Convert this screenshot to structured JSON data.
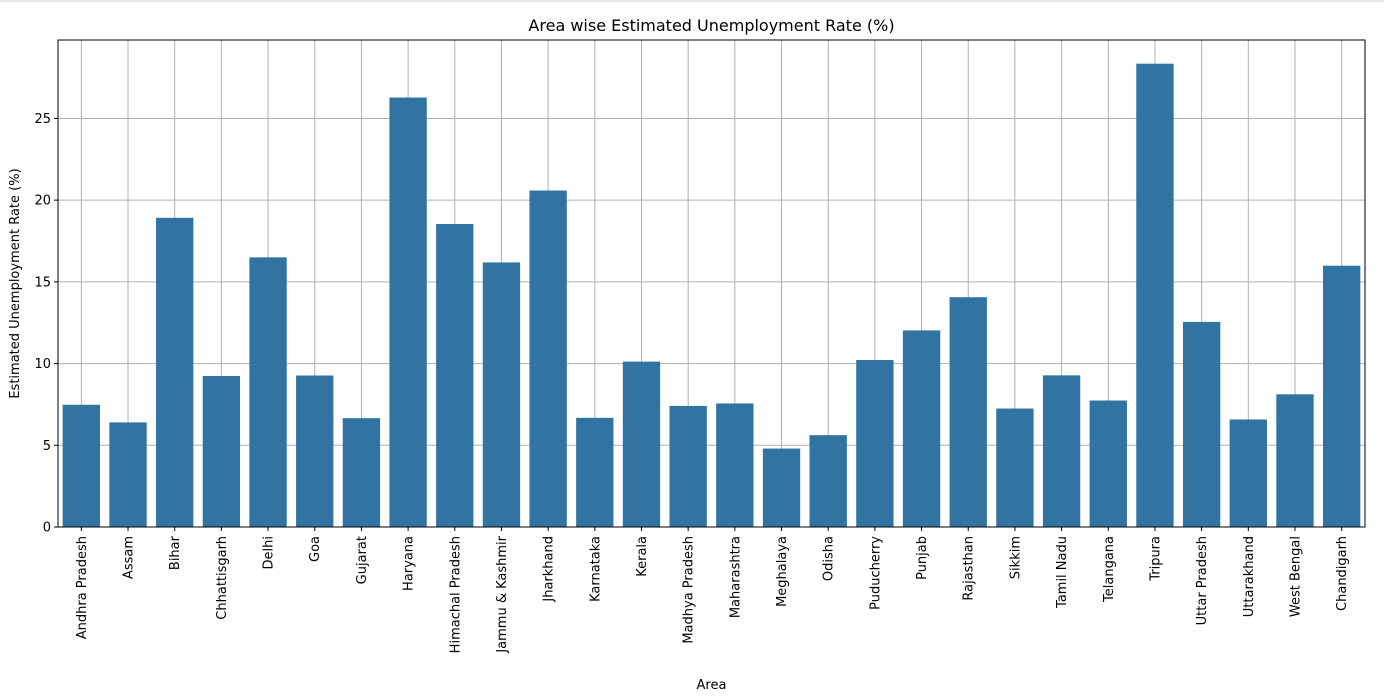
{
  "chart_data": {
    "type": "bar",
    "title": "Area wise Estimated Unemployment Rate (%)",
    "xlabel": "Area",
    "ylabel": "Estimated Unemployment Rate (%)",
    "ylim": [
      0,
      29.8
    ],
    "yticks": [
      0,
      5,
      10,
      15,
      20,
      25
    ],
    "grid": true,
    "bar_color": "#3274a1",
    "categories": [
      "Andhra Pradesh",
      "Assam",
      "Bihar",
      "Chhattisgarh",
      "Delhi",
      "Goa",
      "Gujarat",
      "Haryana",
      "Himachal Pradesh",
      "Jammu & Kashmir",
      "Jharkhand",
      "Karnataka",
      "Kerala",
      "Madhya Pradesh",
      "Maharashtra",
      "Meghalaya",
      "Odisha",
      "Puducherry",
      "Punjab",
      "Rajasthan",
      "Sikkim",
      "Tamil Nadu",
      "Telangana",
      "Tripura",
      "Uttar Pradesh",
      "Uttarakhand",
      "West Bengal",
      "Chandigarh"
    ],
    "values": [
      7.48,
      6.4,
      18.92,
      9.24,
      16.5,
      9.27,
      6.66,
      26.28,
      18.54,
      16.19,
      20.59,
      6.68,
      10.12,
      7.41,
      7.56,
      4.8,
      5.62,
      10.22,
      12.03,
      14.06,
      7.25,
      9.28,
      7.74,
      28.35,
      12.55,
      6.58,
      8.12,
      15.99
    ]
  }
}
